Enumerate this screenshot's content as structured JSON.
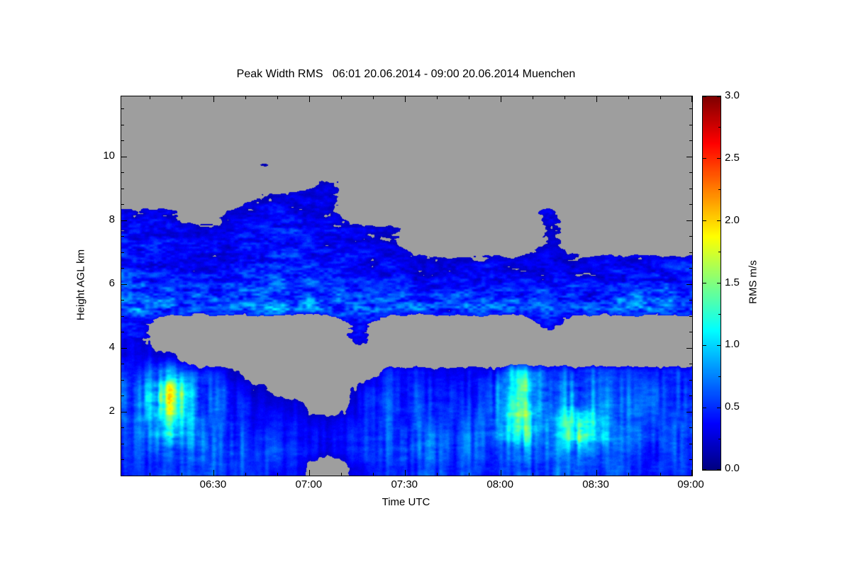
{
  "chart_data": {
    "type": "heatmap",
    "title": "Peak Width RMS   06:01 20.06.2014 - 09:00 20.06.2014 Muenchen",
    "xlabel": "Time UTC",
    "ylabel": "Height AGL km",
    "x_axis": {
      "start_minute": 361,
      "end_minute": 540,
      "minor_step_minutes": 10,
      "major_ticks": [
        {
          "minute": 390,
          "label": "06:30"
        },
        {
          "minute": 420,
          "label": "07:00"
        },
        {
          "minute": 450,
          "label": "07:30"
        },
        {
          "minute": 480,
          "label": "08:00"
        },
        {
          "minute": 510,
          "label": "08:30"
        },
        {
          "minute": 540,
          "label": "09:00"
        }
      ]
    },
    "y_axis": {
      "min_km": 0,
      "max_km": 11.9,
      "minor_step_km": 0.5,
      "major_ticks": [
        {
          "km": 2,
          "label": "2"
        },
        {
          "km": 4,
          "label": "4"
        },
        {
          "km": 6,
          "label": "6"
        },
        {
          "km": 8,
          "label": "8"
        },
        {
          "km": 10,
          "label": "10"
        }
      ]
    },
    "colorbar": {
      "label": "RMS m/s",
      "min": 0,
      "max": 3,
      "minor_step": 0.25,
      "colormap": "jet",
      "ticks": [
        {
          "value": 0.0,
          "label": "0.0"
        },
        {
          "value": 0.5,
          "label": "0.5"
        },
        {
          "value": 1.0,
          "label": "1.0"
        },
        {
          "value": 1.5,
          "label": "1.5"
        },
        {
          "value": 2.0,
          "label": "2.0"
        },
        {
          "value": 2.5,
          "label": "2.5"
        },
        {
          "value": 3.0,
          "label": "3.0"
        }
      ]
    },
    "no_data_color": "#9e9e9e",
    "grid": {
      "description": "RMS m/s values; rows top-to-bottom 11.75 km to 0.25 km (0.5 km per row); cols left-to-right 06:00 to 09:00 (10 min per col); null = no data (gray)",
      "nrows": 24,
      "ncols": 18,
      "h_top_km": 12,
      "h_bottom_km": 0,
      "values": [
        [
          null,
          null,
          null,
          null,
          null,
          null,
          null,
          null,
          null,
          null,
          null,
          null,
          null,
          null,
          null,
          null,
          null,
          null
        ],
        [
          null,
          null,
          null,
          null,
          null,
          null,
          null,
          null,
          null,
          null,
          null,
          null,
          null,
          null,
          null,
          null,
          null,
          null
        ],
        [
          null,
          null,
          null,
          null,
          null,
          null,
          null,
          null,
          null,
          null,
          null,
          null,
          null,
          null,
          null,
          null,
          null,
          null
        ],
        [
          null,
          null,
          null,
          null,
          null,
          null,
          null,
          null,
          null,
          null,
          null,
          null,
          null,
          null,
          null,
          null,
          null,
          null
        ],
        [
          null,
          null,
          null,
          null,
          0.15,
          null,
          null,
          null,
          null,
          null,
          null,
          null,
          null,
          null,
          null,
          null,
          null,
          null
        ],
        [
          null,
          null,
          null,
          null,
          null,
          null,
          0.2,
          null,
          null,
          null,
          null,
          null,
          null,
          null,
          null,
          null,
          null,
          null
        ],
        [
          null,
          null,
          null,
          null,
          0.2,
          0.25,
          0.25,
          null,
          null,
          null,
          null,
          null,
          null,
          null,
          null,
          null,
          null,
          null
        ],
        [
          0.3,
          0.25,
          null,
          0.2,
          0.3,
          0.3,
          0.25,
          null,
          null,
          null,
          null,
          null,
          null,
          0.3,
          null,
          null,
          null,
          null
        ],
        [
          0.35,
          0.3,
          0.2,
          0.3,
          0.35,
          0.35,
          0.3,
          0.25,
          0.2,
          null,
          null,
          null,
          null,
          0.2,
          null,
          null,
          null,
          null
        ],
        [
          0.4,
          0.35,
          0.3,
          0.35,
          0.4,
          0.35,
          0.3,
          0.3,
          0.25,
          null,
          null,
          null,
          null,
          0.2,
          null,
          null,
          null,
          null
        ],
        [
          0.4,
          0.3,
          0.3,
          0.4,
          0.4,
          0.4,
          0.35,
          0.3,
          0.3,
          0.25,
          0.2,
          0.25,
          0.2,
          0.25,
          0.2,
          0.3,
          0.3,
          0.3
        ],
        [
          0.45,
          0.4,
          0.35,
          0.4,
          0.45,
          0.45,
          0.4,
          0.35,
          0.35,
          0.3,
          0.3,
          0.35,
          0.3,
          0.3,
          0.3,
          0.35,
          0.4,
          0.4
        ],
        [
          0.5,
          0.45,
          0.45,
          0.5,
          0.5,
          0.5,
          0.45,
          0.45,
          0.45,
          0.4,
          0.4,
          0.45,
          0.4,
          0.45,
          0.4,
          0.45,
          0.5,
          0.5
        ],
        [
          0.6,
          0.6,
          0.55,
          0.6,
          0.7,
          0.65,
          0.6,
          0.6,
          0.6,
          0.55,
          0.55,
          0.6,
          0.55,
          0.6,
          0.55,
          0.6,
          0.65,
          0.6
        ],
        [
          0.3,
          null,
          null,
          null,
          null,
          null,
          null,
          0.4,
          null,
          null,
          null,
          null,
          null,
          0.35,
          null,
          null,
          null,
          null
        ],
        [
          0.3,
          null,
          null,
          null,
          null,
          null,
          null,
          0.3,
          null,
          null,
          null,
          null,
          null,
          null,
          null,
          null,
          null,
          null
        ],
        [
          0.3,
          0.25,
          null,
          null,
          null,
          null,
          null,
          null,
          null,
          null,
          null,
          null,
          null,
          null,
          null,
          null,
          null,
          null
        ],
        [
          0.45,
          0.7,
          0.5,
          0.2,
          null,
          null,
          null,
          null,
          0.4,
          0.35,
          0.3,
          0.3,
          0.9,
          0.5,
          0.5,
          0.45,
          0.4,
          0.45
        ],
        [
          0.5,
          1.3,
          0.6,
          0.35,
          0.2,
          null,
          null,
          0.25,
          0.45,
          0.4,
          0.35,
          0.4,
          1.1,
          0.6,
          0.6,
          0.55,
          0.5,
          0.5
        ],
        [
          0.5,
          1.4,
          0.6,
          0.4,
          0.3,
          0.2,
          null,
          0.3,
          0.5,
          0.45,
          0.4,
          0.45,
          1.2,
          0.6,
          0.7,
          0.6,
          0.55,
          0.5
        ],
        [
          0.5,
          1.2,
          0.6,
          0.45,
          0.35,
          0.3,
          0.2,
          0.35,
          0.5,
          0.5,
          0.45,
          0.5,
          1.2,
          0.65,
          1.2,
          0.6,
          0.55,
          0.55
        ],
        [
          0.45,
          1.0,
          0.6,
          0.5,
          0.4,
          0.35,
          0.3,
          0.4,
          0.5,
          0.6,
          0.5,
          0.55,
          1.0,
          0.6,
          1.3,
          0.6,
          0.55,
          0.5
        ],
        [
          0.45,
          0.6,
          0.55,
          0.5,
          0.45,
          0.4,
          0.25,
          0.45,
          0.5,
          0.6,
          0.5,
          0.5,
          0.6,
          0.55,
          0.7,
          0.55,
          0.5,
          0.5
        ],
        [
          0.4,
          0.5,
          0.5,
          0.45,
          0.4,
          0.35,
          null,
          0.3,
          0.45,
          0.5,
          0.45,
          0.45,
          0.5,
          0.5,
          0.55,
          0.5,
          0.45,
          0.45
        ]
      ]
    }
  }
}
